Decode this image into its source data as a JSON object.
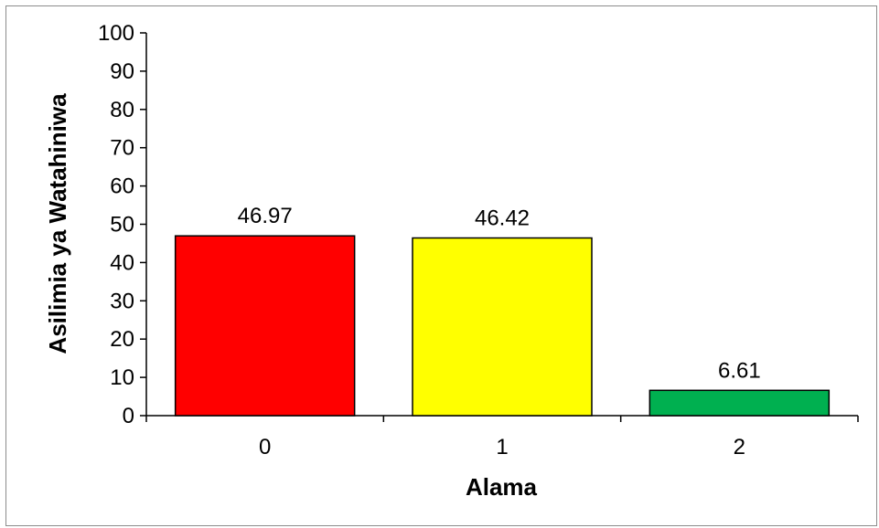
{
  "chart_data": {
    "type": "bar",
    "categories": [
      "0",
      "1",
      "2"
    ],
    "values": [
      46.97,
      46.42,
      6.61
    ],
    "data_labels": [
      "46.97",
      "46.42",
      "6.61"
    ],
    "colors": [
      "#ff0000",
      "#ffff00",
      "#00b050"
    ],
    "title": "",
    "xlabel": "Alama",
    "ylabel": "Asilimia ya Watahiniwa",
    "ylim": [
      0,
      100
    ],
    "yticks": [
      0,
      10,
      20,
      30,
      40,
      50,
      60,
      70,
      80,
      90,
      100
    ],
    "grid": false,
    "legend": "none"
  }
}
